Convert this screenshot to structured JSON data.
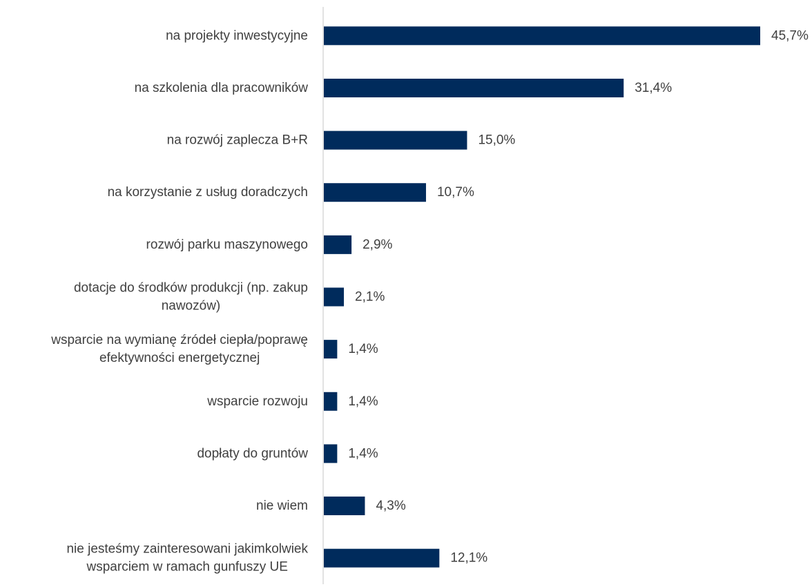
{
  "chart_data": {
    "type": "bar",
    "orientation": "horizontal",
    "bar_color": "#002b5c",
    "axis_color": "#d9d9d9",
    "grid": false,
    "legend": "none",
    "xlim": [
      0,
      45.7
    ],
    "categories": [
      [
        "na projekty inwestycyjne"
      ],
      [
        "na szkolenia dla pracowników"
      ],
      [
        "na rozwój zaplecza B+R"
      ],
      [
        "na korzystanie z usług doradczych"
      ],
      [
        "rozwój parku maszynowego"
      ],
      [
        "dotacje do środków produkcji (np. zakup",
        "nawozów)"
      ],
      [
        "wsparcie na wymianę źródeł ciepła/poprawę",
        "efektywności energetycznej"
      ],
      [
        "wsparcie rozwoju"
      ],
      [
        "dopłaty do gruntów"
      ],
      [
        "nie wiem"
      ],
      [
        "nie jesteśmy zainteresowani jakimkolwiek",
        "wsparciem w ramach gunfuszy UE"
      ]
    ],
    "values": [
      45.7,
      31.4,
      15.0,
      10.7,
      2.9,
      2.1,
      1.4,
      1.4,
      1.4,
      4.3,
      12.1
    ],
    "value_labels": [
      "45,7%",
      "31,4%",
      "15,0%",
      "10,7%",
      "2,9%",
      "2,1%",
      "1,4%",
      "1,4%",
      "1,4%",
      "4,3%",
      "12,1%"
    ]
  }
}
